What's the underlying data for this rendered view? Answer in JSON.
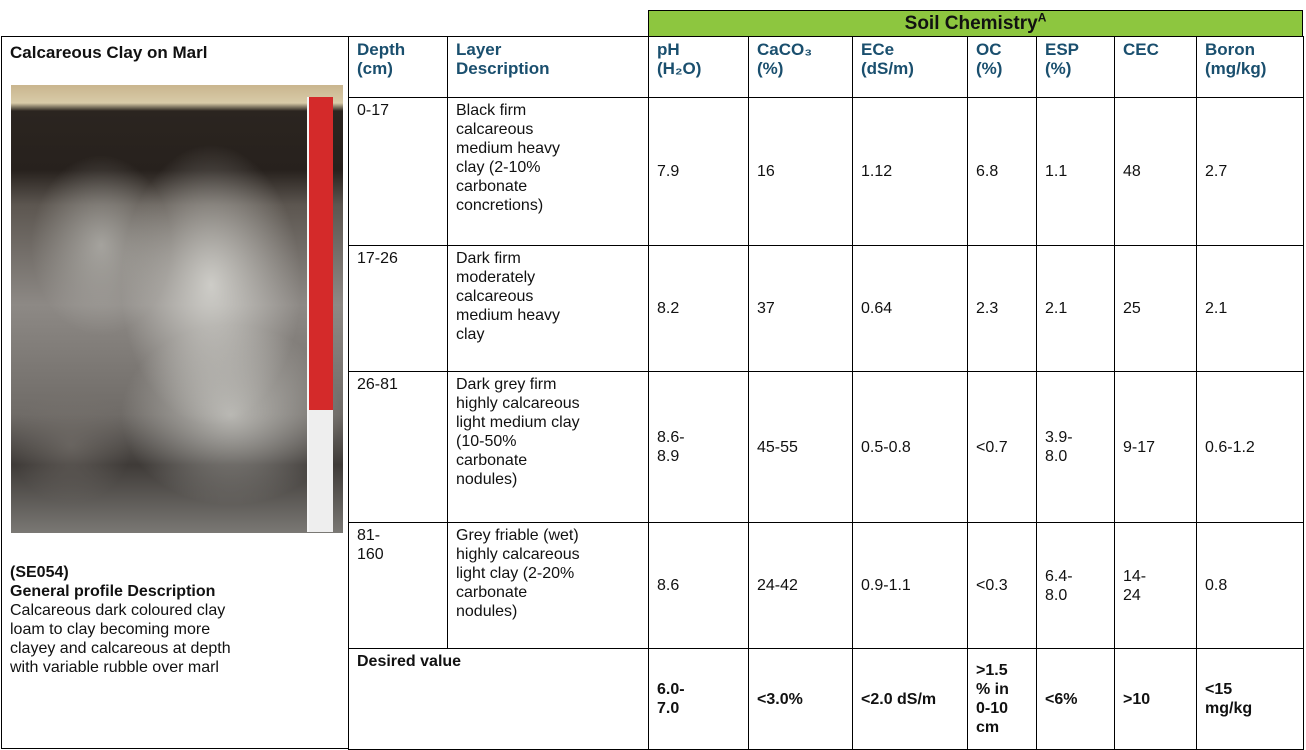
{
  "header": {
    "title": "Soil Chemistry",
    "superscript": "A"
  },
  "profile": {
    "name": "Calcareous Clay on Marl",
    "code": "(SE054)",
    "description_title": "General profile Description",
    "description": [
      "Calcareous dark coloured clay",
      "loam to clay becoming more",
      "clayey and calcareous at depth",
      "with variable rubble over marl"
    ]
  },
  "table": {
    "columns": [
      [
        "Depth",
        "(cm)"
      ],
      [
        "Layer",
        "Description"
      ],
      [
        "pH",
        "(H₂O)"
      ],
      [
        "CaCO₃",
        "(%)"
      ],
      [
        "ECe",
        "(dS/m)"
      ],
      [
        "OC",
        "(%)"
      ],
      [
        "ESP",
        "(%)"
      ],
      [
        "CEC"
      ],
      [
        "Boron",
        "(mg/kg)"
      ]
    ],
    "rows": [
      {
        "depth": "0-17",
        "description": [
          "Black firm",
          "calcareous",
          "medium heavy",
          "clay (2-10%",
          "carbonate",
          "concretions)"
        ],
        "values": [
          "7.9",
          "16",
          "1.12",
          "6.8",
          "1.1",
          "48",
          "2.7"
        ]
      },
      {
        "depth": "17-26",
        "description": [
          "Dark firm",
          "moderately",
          "calcareous",
          "medium heavy",
          "clay"
        ],
        "values": [
          "8.2",
          "37",
          "0.64",
          "2.3",
          "2.1",
          "25",
          "2.1"
        ]
      },
      {
        "depth": "26-81",
        "description": [
          "Dark grey firm",
          "highly calcareous",
          "light medium clay",
          "(10-50%",
          "carbonate",
          "nodules)"
        ],
        "values": [
          "8.6-8.9",
          "45-55",
          "0.5-0.8",
          "<0.7",
          "3.9-8.0",
          "9-17",
          "0.6-1.2"
        ]
      },
      {
        "depth": "81-160",
        "description": [
          "Grey friable (wet)",
          "highly calcareous",
          "light clay (2-20%",
          "carbonate",
          "nodules)"
        ],
        "values": [
          "8.6",
          "24-42",
          "0.9-1.1",
          "<0.3",
          "6.4-8.0",
          "14-24",
          "0.8"
        ]
      }
    ],
    "desired": {
      "label": "Desired value",
      "values": [
        "6.0-7.0",
        "<3.0%",
        "<2.0 dS/m",
        ">1.5 % in 0-10 cm",
        "<6%",
        ">10",
        "<15 mg/kg"
      ]
    }
  }
}
